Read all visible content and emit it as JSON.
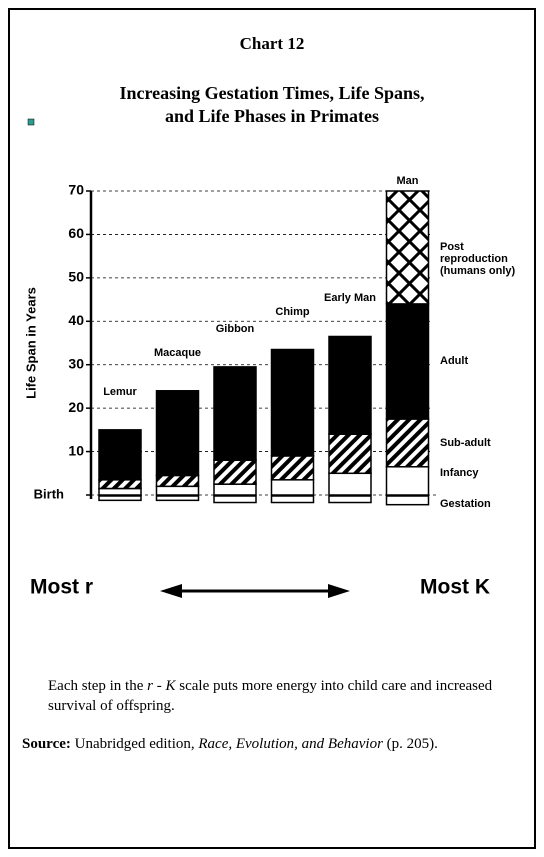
{
  "chart_data": {
    "type": "bar",
    "chart_number": "Chart 12",
    "title": "Increasing Gestation Times, Life Spans,",
    "title_line2": "and Life Phases in Primates",
    "y_label": "Life Span in Years",
    "left_label": "Most r",
    "right_label": "Most K",
    "categories": [
      "Lemur",
      "Macaque",
      "Gibbon",
      "Chimp",
      "Early Man",
      "Man"
    ],
    "ylim": [
      0,
      70
    ],
    "yticks": [
      {
        "value": 0,
        "label": "Birth"
      },
      10,
      20,
      30,
      40,
      50,
      60,
      70
    ],
    "grid": true,
    "series": [
      {
        "name": "Gestation",
        "color": "#ffffff",
        "stack": "below",
        "values": [
          1,
          1,
          1.5,
          1.5,
          1.5,
          2
        ]
      },
      {
        "name": "Infancy",
        "color": "#ffffff",
        "stack": "above",
        "values": [
          1.5,
          2,
          2.5,
          3.5,
          5,
          6.5
        ]
      },
      {
        "name": "Sub-adult",
        "color": "#000000",
        "pattern": "diagonal",
        "stack": "above",
        "values": [
          2,
          2.5,
          5.5,
          5.5,
          9,
          11
        ]
      },
      {
        "name": "Adult",
        "color": "#000000",
        "stack": "above",
        "values": [
          11.5,
          19.5,
          21.5,
          24.5,
          22.5,
          26.5
        ]
      },
      {
        "name": "Post reproduction (humans only)",
        "color": "#000000",
        "pattern": "crosshatch",
        "stack": "above",
        "values": [
          null,
          null,
          null,
          null,
          null,
          26
        ]
      }
    ]
  },
  "caption": [
    "Each step in the ",
    "r",
    " - ",
    "K",
    " scale puts more energy into child care and increased survival of offspring."
  ],
  "source": [
    "Source:",
    "  Unabridged edition, ",
    "Race, Evolution, and Behavior",
    " (p. 205)."
  ]
}
